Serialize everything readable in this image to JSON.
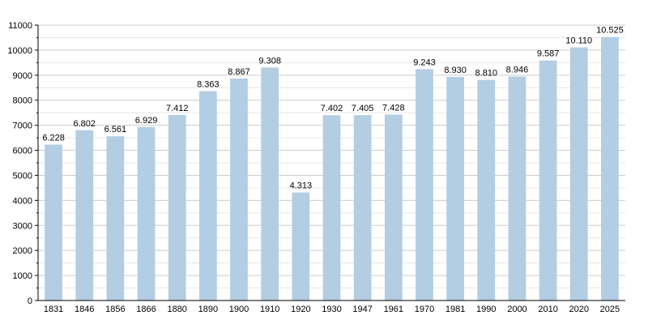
{
  "chart_data": {
    "type": "bar",
    "title": "",
    "xlabel": "",
    "ylabel": "",
    "categories": [
      "1831",
      "1846",
      "1856",
      "1866",
      "1880",
      "1890",
      "1900",
      "1910",
      "1920",
      "1930",
      "1947",
      "1961",
      "1970",
      "1981",
      "1990",
      "2000",
      "2010",
      "2020",
      "2025"
    ],
    "values": [
      6228,
      6802,
      6561,
      6929,
      7412,
      8363,
      8867,
      9308,
      4313,
      7402,
      7405,
      7428,
      9243,
      8930,
      8810,
      8946,
      9587,
      10110,
      10525
    ],
    "value_labels": [
      "6.228",
      "6.802",
      "6.561",
      "6.929",
      "7.412",
      "8.363",
      "8.867",
      "9.308",
      "4.313",
      "7.402",
      "7.405",
      "7.428",
      "9.243",
      "8.930",
      "8.810",
      "8.946",
      "9.587",
      "10.110",
      "10.525"
    ],
    "ylim": [
      0,
      11000
    ],
    "yticks": [
      0,
      1000,
      2000,
      3000,
      4000,
      5000,
      6000,
      7000,
      8000,
      9000,
      10000,
      11000
    ],
    "grid": true,
    "legend": "none",
    "colors": {
      "bar": "#b3cde3",
      "grid": "#cccccc",
      "axis": "#000000"
    }
  }
}
